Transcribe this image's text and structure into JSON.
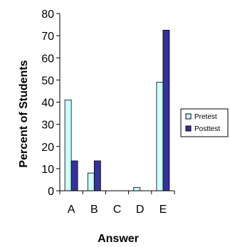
{
  "chart_data": {
    "type": "bar",
    "title": "",
    "xlabel": "Answer",
    "ylabel": "Percent of Students",
    "categories": [
      "A",
      "B",
      "C",
      "D",
      "E"
    ],
    "series": [
      {
        "name": "Pretest",
        "color": "#ccffff",
        "values": [
          41,
          8,
          0,
          1.5,
          49
        ]
      },
      {
        "name": "Posttest",
        "color": "#333399",
        "values": [
          13.5,
          13.5,
          0,
          0,
          72.5
        ]
      }
    ],
    "ylim": [
      0,
      80
    ],
    "yticks": [
      "0",
      "10",
      "20",
      "30",
      "40",
      "50",
      "60",
      "70",
      "80"
    ],
    "grid": false,
    "legend": "right"
  }
}
